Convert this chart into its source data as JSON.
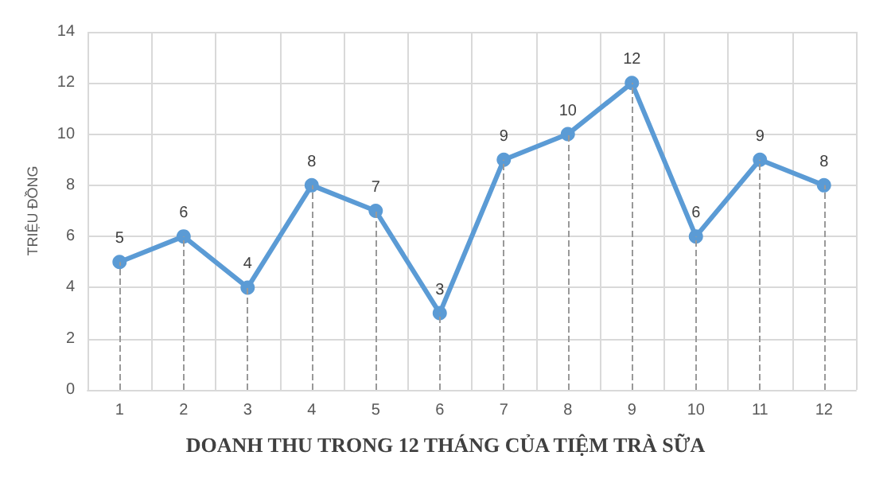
{
  "chart_data": {
    "type": "line",
    "title": "DOANH THU TRONG 12 THÁNG CỦA TIỆM TRÀ SỮA",
    "ylabel": "TRIỆU ĐỒNG",
    "categories": [
      "1",
      "2",
      "3",
      "4",
      "5",
      "6",
      "7",
      "8",
      "9",
      "10",
      "11",
      "12"
    ],
    "series": [
      {
        "color": "#5b9bd5",
        "values": [
          5,
          6,
          4,
          8,
          7,
          3,
          9,
          10,
          12,
          6,
          9,
          8
        ]
      }
    ],
    "ylim": [
      0,
      14
    ],
    "yticks": [
      0,
      2,
      4,
      6,
      8,
      10,
      12,
      14
    ],
    "grid": true,
    "marker": "circle",
    "line_style": "solid",
    "data_labels": true
  }
}
